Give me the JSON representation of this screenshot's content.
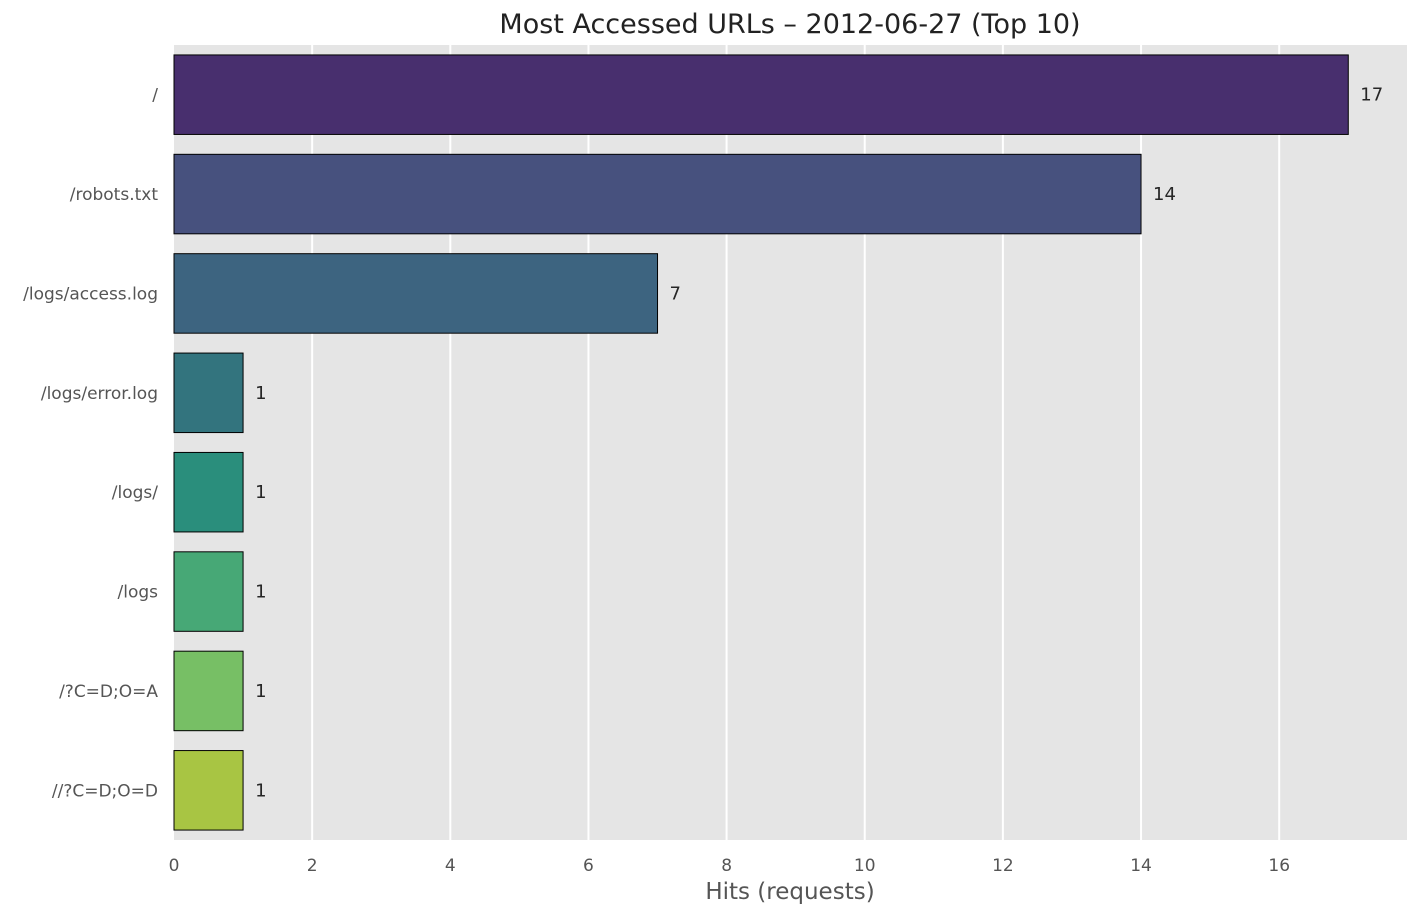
{
  "chart_data": {
    "type": "bar",
    "orientation": "horizontal",
    "title": "Most Accessed URLs – 2012-06-27 (Top 10)",
    "xlabel": "Hits (requests)",
    "ylabel": "",
    "categories": [
      "/",
      "/robots.txt",
      "/logs/access.log",
      "/logs/error.log",
      "/logs/",
      "/logs",
      "/?C=D;O=A",
      "//?C=D;O=D"
    ],
    "values": [
      17,
      14,
      7,
      1,
      1,
      1,
      1,
      1
    ],
    "value_labels": [
      "17",
      "14",
      "7",
      "1",
      "1",
      "1",
      "1",
      "1"
    ],
    "colors": [
      "#482f6e",
      "#47517e",
      "#3d6480",
      "#33747e",
      "#2a8e7c",
      "#47a876",
      "#77bf65",
      "#a8c543"
    ],
    "xlim": [
      0,
      17.85
    ],
    "xticks": [
      0,
      2,
      4,
      6,
      8,
      10,
      12,
      14,
      16
    ],
    "xtick_labels": [
      "0",
      "2",
      "4",
      "6",
      "8",
      "10",
      "12",
      "14",
      "16"
    ],
    "grid": true,
    "background": "#e5e5e5",
    "grid_color": "#ffffff",
    "bar_edge_color": "#000000",
    "legend": "none"
  }
}
